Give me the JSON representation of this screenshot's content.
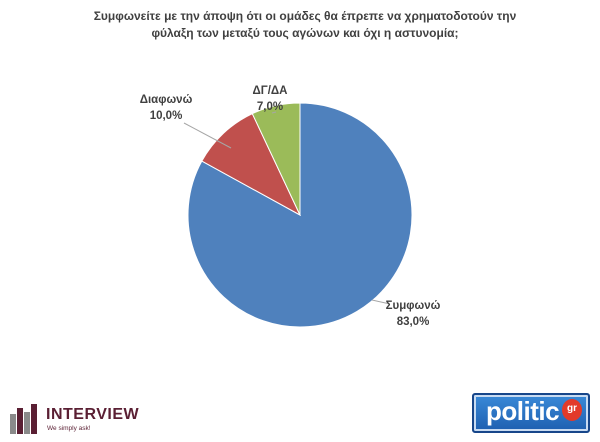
{
  "title_lines": [
    "Συμφωνείτε με την άποψη ότι οι ομάδες θα έπρεπε να χρηματοδοτούν την",
    "φύλαξη των μεταξύ τους αγώνων και όχι η αστυνομία;"
  ],
  "chart_data": {
    "type": "pie",
    "title": "Συμφωνείτε με την άποψη ότι οι ομάδες θα έπρεπε να χρηματοδοτούν την φύλαξη των μεταξύ τους αγώνων και όχι η αστυνομία;",
    "start_angle_deg": 0,
    "direction": "clockwise",
    "slices": [
      {
        "name": "Συμφωνώ",
        "value": 83.0,
        "label": "83,0%",
        "color": "#4f81bd"
      },
      {
        "name": "Διαφωνώ",
        "value": 10.0,
        "label": "10,0%",
        "color": "#c0504d"
      },
      {
        "name": "ΔΓ/ΔΑ",
        "value": 7.0,
        "label": "7,0%",
        "color": "#9bbb59"
      }
    ]
  },
  "logos": {
    "interview": {
      "name": "INTERVIEW",
      "tagline": "We simply ask!",
      "color": "#5a1f33"
    },
    "politic": {
      "name": "politic",
      "suffix": "gr",
      "color": "#2a6fc4"
    }
  }
}
